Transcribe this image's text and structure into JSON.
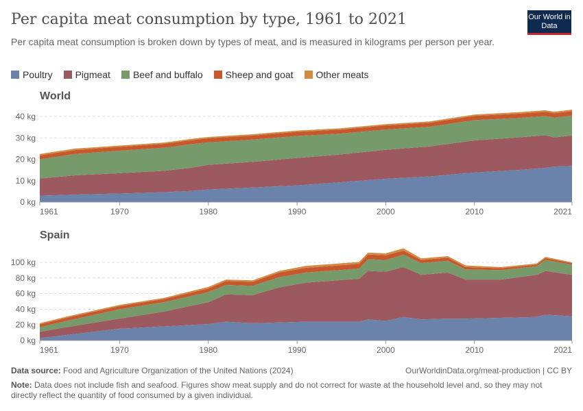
{
  "header": {
    "title": "Per capita meat consumption by type, 1961 to 2021",
    "subtitle": "Per capita meat consumption is broken down by types of meat, and is measured in kilograms per person per year.",
    "logo": "Our World in Data"
  },
  "legend": [
    {
      "label": "Poultry",
      "color": "#6b83ab"
    },
    {
      "label": "Pigmeat",
      "color": "#9c5960"
    },
    {
      "label": "Beef and buffalo",
      "color": "#779a6a"
    },
    {
      "label": "Sheep and goat",
      "color": "#c7582e"
    },
    {
      "label": "Other meats",
      "color": "#d08b44"
    }
  ],
  "chart_data": [
    {
      "type": "area",
      "title": "World",
      "ylabel": "kg",
      "ylim": [
        0,
        43
      ],
      "yticks": [
        "0 kg",
        "10 kg",
        "20 kg",
        "30 kg",
        "40 kg"
      ],
      "ytick_values": [
        0,
        10,
        20,
        30,
        40
      ],
      "xticks": [
        "1961",
        "1970",
        "1980",
        "1990",
        "2000",
        "2010",
        "2021"
      ],
      "x": [
        1961,
        1965,
        1970,
        1975,
        1978,
        1980,
        1985,
        1990,
        1995,
        2000,
        2005,
        2010,
        2015,
        2018,
        2019,
        2021
      ],
      "series": [
        {
          "name": "Poultry",
          "values": [
            3,
            3.5,
            4,
            4.6,
            5.2,
            5.9,
            6.8,
            7.8,
            9.3,
            10.9,
            12,
            13.8,
            15,
            16,
            16.6,
            16.9
          ]
        },
        {
          "name": "Pigmeat",
          "values": [
            8,
            9,
            9.5,
            10,
            10.8,
            11.5,
            12,
            12.8,
            13,
            13.5,
            14,
            15,
            15.2,
            15.2,
            13.6,
            14.2
          ]
        },
        {
          "name": "Beef and buffalo",
          "values": [
            9,
            10,
            10.5,
            10.8,
            11,
            10.5,
            10.4,
            10.3,
            9.7,
            9.5,
            9.2,
            9.5,
            9.1,
            9,
            9.3,
            9.3
          ]
        },
        {
          "name": "Sheep and goat",
          "values": [
            1.8,
            1.8,
            1.8,
            1.8,
            1.9,
            1.9,
            1.9,
            1.9,
            1.9,
            1.9,
            1.9,
            2,
            2,
            2,
            2,
            2.1
          ]
        },
        {
          "name": "Other meats",
          "values": [
            0.7,
            0.7,
            0.6,
            0.6,
            0.6,
            0.6,
            0.6,
            0.6,
            0.6,
            0.6,
            0.6,
            0.6,
            0.7,
            0.7,
            0.7,
            0.7
          ]
        }
      ]
    },
    {
      "type": "area",
      "title": "Spain",
      "ylabel": "kg",
      "ylim": [
        0,
        120
      ],
      "yticks": [
        "0 kg",
        "20 kg",
        "40 kg",
        "60 kg",
        "80 kg",
        "100 kg"
      ],
      "ytick_values": [
        0,
        20,
        40,
        60,
        80,
        100
      ],
      "xticks": [
        "1961",
        "1970",
        "1980",
        "1990",
        "2000",
        "2010",
        "2021"
      ],
      "x": [
        1961,
        1964,
        1970,
        1975,
        1980,
        1982,
        1985,
        1988,
        1991,
        1997,
        1998,
        2000,
        2002,
        2004,
        2007,
        2009,
        2013,
        2017,
        2018,
        2021
      ],
      "series": [
        {
          "name": "Poultry",
          "values": [
            3,
            7,
            15,
            18,
            21,
            24,
            22,
            23,
            24,
            24,
            27,
            25,
            30,
            27,
            28,
            28,
            29,
            30,
            33,
            31
          ]
        },
        {
          "name": "Pigmeat",
          "values": [
            8,
            10,
            13,
            19,
            28,
            35,
            36,
            45,
            50,
            55,
            62,
            63,
            64,
            57,
            59,
            50,
            49,
            54,
            56,
            53
          ]
        },
        {
          "name": "Beef and buffalo",
          "values": [
            6,
            8,
            12,
            12,
            13,
            12,
            12,
            13,
            13,
            13,
            15,
            15,
            16,
            15,
            15,
            13,
            12,
            11,
            14,
            13
          ]
        },
        {
          "name": "Sheep and goat",
          "values": [
            3.5,
            4,
            4,
            4,
            4.5,
            5,
            5,
            6,
            6,
            6,
            6,
            6,
            5,
            4,
            4,
            3,
            2.5,
            2,
            2.5,
            2
          ]
        },
        {
          "name": "Other meats",
          "values": [
            1.5,
            1.5,
            1.5,
            1.5,
            2,
            2,
            2,
            2,
            2.5,
            2.5,
            2.5,
            2.5,
            3,
            2,
            2,
            2,
            1.5,
            1.5,
            1.5,
            1
          ]
        }
      ]
    }
  ],
  "footer": {
    "source_label": "Data source:",
    "source": "Food and Agriculture Organization of the United Nations (2024)",
    "url": "OurWorldinData.org/meat-production | CC BY",
    "note_label": "Note:",
    "note": "Data does not include fish and seafood. Figures show meat supply and do not correct for waste at the household level and, so they may not directly reflect the quantity of food consumed by a given individual."
  }
}
